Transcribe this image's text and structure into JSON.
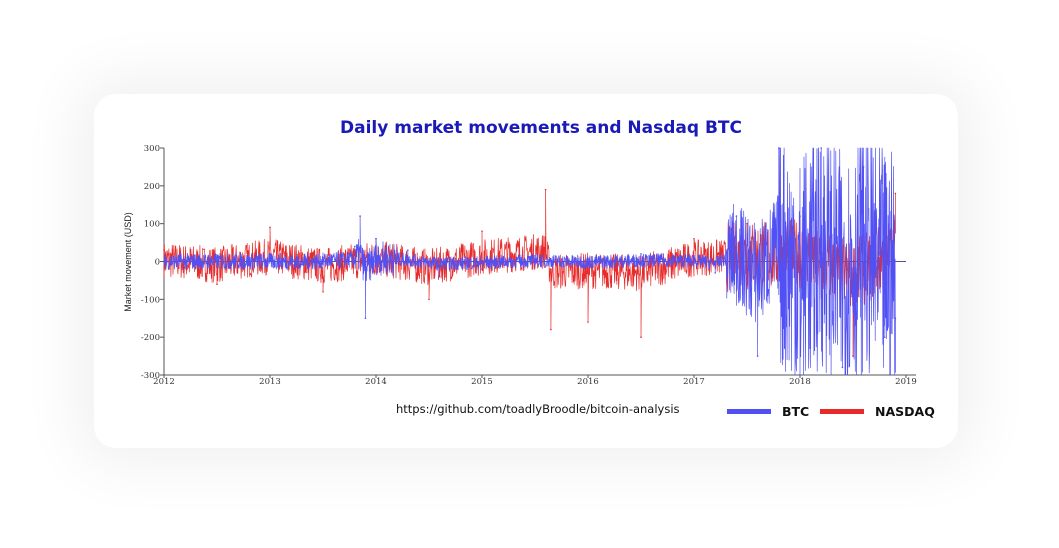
{
  "chart_data": {
    "type": "line",
    "title": "Daily market movements and Nasdaq BTC",
    "ylabel": "Market movement (USD)",
    "xlabel": "",
    "xlim": [
      2012,
      2019
    ],
    "ylim": [
      -300,
      300
    ],
    "x_ticks": [
      "2012",
      "2013",
      "2014",
      "2015",
      "2016",
      "2017",
      "2018",
      "2019"
    ],
    "y_ticks": [
      "300",
      "200",
      "100",
      "0",
      "-100",
      "-200",
      "-300"
    ],
    "legend_position": "bottom-right",
    "series": [
      {
        "name": "BTC",
        "color": "#5050f5",
        "x": [
          2012.0,
          2012.5,
          2013.0,
          2013.3,
          2013.5,
          2013.8,
          2013.85,
          2013.9,
          2014.0,
          2014.3,
          2014.6,
          2015.0,
          2015.5,
          2016.0,
          2016.5,
          2017.0,
          2017.2,
          2017.4,
          2017.6,
          2017.8,
          2018.0,
          2018.2,
          2018.4,
          2018.6,
          2018.8,
          2018.9
        ],
        "values": [
          0,
          2,
          5,
          -8,
          10,
          40,
          120,
          -150,
          60,
          30,
          -40,
          -20,
          15,
          -10,
          20,
          15,
          -30,
          120,
          -250,
          300,
          -300,
          300,
          -280,
          250,
          -200,
          -150
        ]
      },
      {
        "name": "NASDAQ",
        "color": "#e82a2a",
        "x": [
          2012.0,
          2012.5,
          2013.0,
          2013.5,
          2014.0,
          2014.5,
          2015.0,
          2015.6,
          2015.65,
          2016.0,
          2016.5,
          2017.0,
          2017.5,
          2018.0,
          2018.5,
          2018.9
        ],
        "values": [
          30,
          -60,
          90,
          -80,
          60,
          -100,
          80,
          190,
          -180,
          -160,
          -200,
          60,
          100,
          120,
          -250,
          180
        ]
      }
    ]
  },
  "footer": {
    "source": "https://github.com/toadlyBroodle/bitcoin-analysis"
  },
  "legend": {
    "btc_label": "BTC",
    "nasdaq_label": "NASDAQ"
  }
}
